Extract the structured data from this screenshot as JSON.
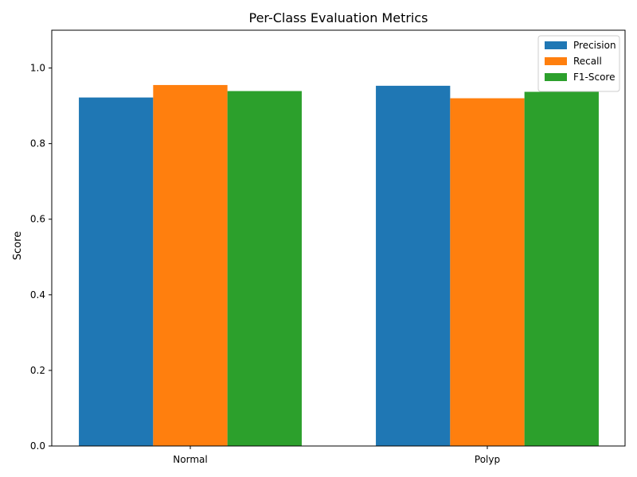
{
  "chart_data": {
    "type": "bar",
    "title": "Per-Class Evaluation Metrics",
    "xlabel": "",
    "ylabel": "Score",
    "categories": [
      "Normal",
      "Polyp"
    ],
    "series": [
      {
        "name": "Precision",
        "values": [
          0.922,
          0.953
        ]
      },
      {
        "name": "Recall",
        "values": [
          0.955,
          0.92
        ]
      },
      {
        "name": "F1-Score",
        "values": [
          0.939,
          0.937
        ]
      }
    ],
    "ylim": [
      0,
      1.1
    ],
    "yticks": [
      "0.0",
      "0.2",
      "0.4",
      "0.6",
      "0.8",
      "1.0"
    ],
    "grid": false,
    "legend_position": "top-right"
  },
  "colors": {
    "Precision": "#1f77b4",
    "Recall": "#ff7f0e",
    "F1-Score": "#2ca02c"
  }
}
